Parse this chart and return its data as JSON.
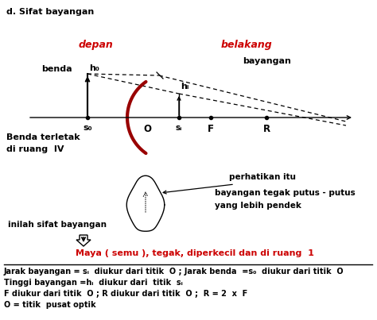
{
  "title": "d. Sifat bayangan",
  "bg_color": "#ffffff",
  "text_depan": "depan",
  "text_belakang": "belakang",
  "text_benda": "benda",
  "text_bayangan_top": "bayangan",
  "text_O": "O",
  "text_F": "F",
  "text_R": "R",
  "text_s0": "s₀",
  "text_si": "sᵢ",
  "text_h0": "h₀",
  "text_hi": "hᵢ",
  "text_benda_ruang": "Benda terletak\ndi ruang  IV",
  "text_perhatikan": "perhatikan itu",
  "text_bayangan_putus": "bayangan tegak putus - putus",
  "text_lebih_pendek": "yang lebih pendek",
  "text_inilah": "inilah sifat bayangan",
  "text_maya": "Maya ( semu ), tegak, diperkecil dan di ruang  1",
  "note1": "Jarak bayangan = sᵢ  diukur dari titik  O ; Jarak benda  =s₀  diukur dari titik  O",
  "note2": "Tinggi bayangan =hᵢ  diukur dari  titik  sᵢ",
  "note3": "F diukur dari titik  O ; R diukur dari titik  O ;  R = 2  x  F",
  "note4": "O = titik  pusat optik",
  "red_color": "#cc0000",
  "dark_red": "#990000",
  "black": "#000000"
}
